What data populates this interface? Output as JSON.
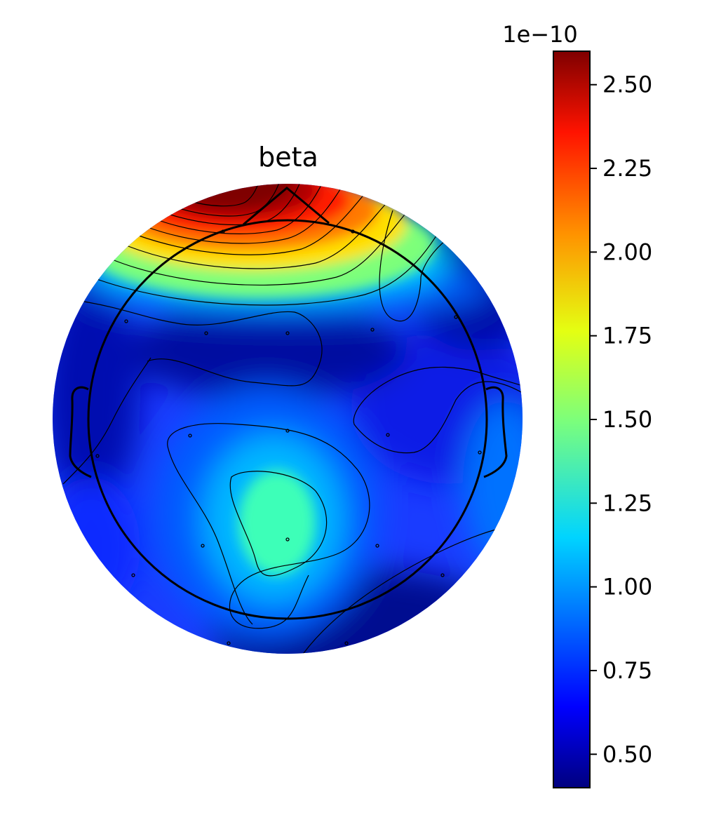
{
  "chart_data": {
    "type": "heatmap",
    "subtype": "eeg-topomap",
    "title": "beta",
    "colormap": "jet",
    "colorbar": {
      "exponent_label": "1e−10",
      "range": [
        0.4,
        2.6
      ],
      "ticks": [
        0.5,
        0.75,
        1.0,
        1.25,
        1.5,
        1.75,
        2.0,
        2.25,
        2.5
      ],
      "tick_labels": [
        "0.50",
        "0.75",
        "1.00",
        "1.25",
        "1.50",
        "1.75",
        "2.00",
        "2.25",
        "2.50"
      ],
      "placement": "right"
    },
    "head_outline": true,
    "contours": true,
    "sensor_count": 19,
    "regions": [
      {
        "name": "frontal-pole maximum",
        "value": 2.6
      },
      {
        "name": "midline frontal-central minimum",
        "value": 0.45
      },
      {
        "name": "left-posterior/parietal local maximum",
        "value": 1.4
      },
      {
        "name": "right-posterior minimum",
        "value": 0.5
      },
      {
        "name": "temporal edges",
        "value": 0.7
      }
    ]
  }
}
